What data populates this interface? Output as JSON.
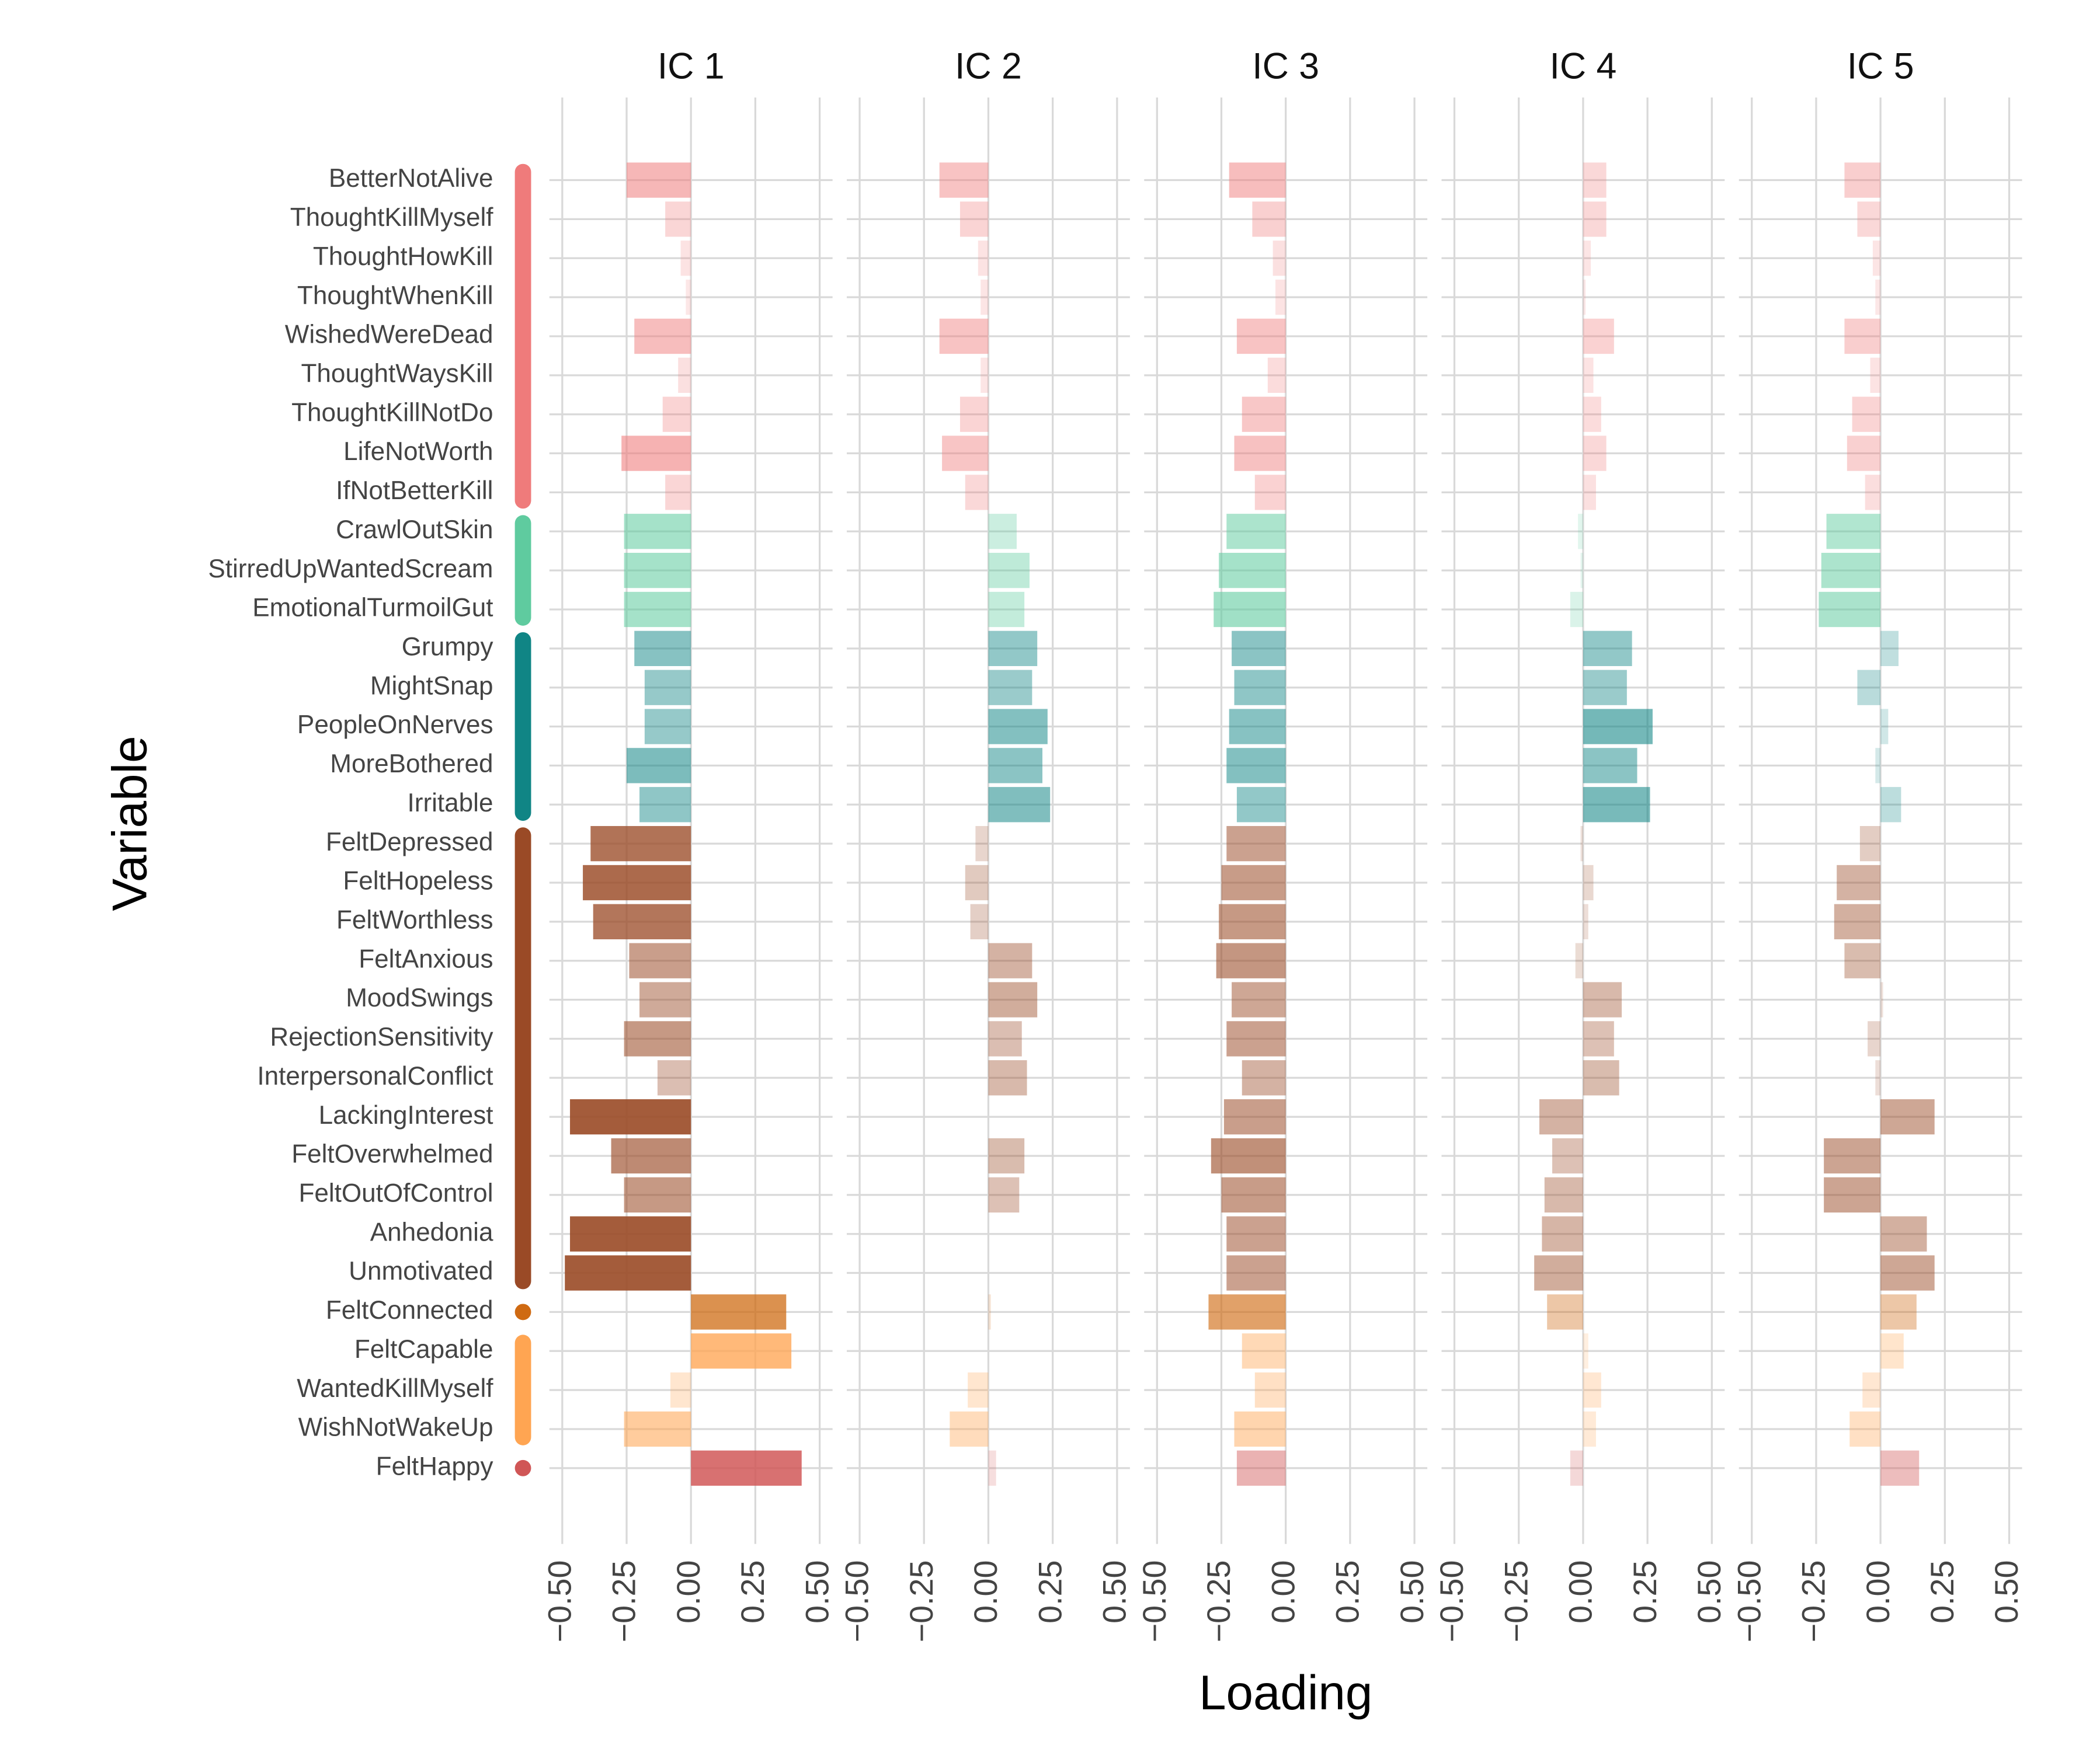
{
  "chart_data": {
    "type": "bar",
    "orientation": "horizontal",
    "xlabel": "Loading",
    "ylabel": "Variable",
    "categories": [
      "BetterNotAlive",
      "ThoughtKillMyself",
      "ThoughtHowKill",
      "ThoughtWhenKill",
      "WishedWereDead",
      "ThoughtWaysKill",
      "ThoughtKillNotDo",
      "LifeNotWorth",
      "IfNotBetterKill",
      "CrawlOutSkin",
      "StirredUpWantedScream",
      "EmotionalTurmoilGut",
      "Grumpy",
      "MightSnap",
      "PeopleOnNerves",
      "MoreBothered",
      "Irritable",
      "FeltDepressed",
      "FeltHopeless",
      "FeltWorthless",
      "FeltAnxious",
      "MoodSwings",
      "RejectionSensitivity",
      "InterpersonalConflict",
      "LackingInterest",
      "FeltOverwhelmed",
      "FeltOutOfControl",
      "Anhedonia",
      "Unmotivated",
      "FeltConnected",
      "FeltCapable",
      "WantedKillMyself",
      "WishNotWakeUp",
      "FeltHappy"
    ],
    "category_colors": [
      "#ef7b7b",
      "#ef7b7b",
      "#ef7b7b",
      "#ef7b7b",
      "#ef7b7b",
      "#ef7b7b",
      "#ef7b7b",
      "#ef7b7b",
      "#ef7b7b",
      "#5fcb9f",
      "#5fcb9f",
      "#5fcb9f",
      "#108585",
      "#108585",
      "#108585",
      "#108585",
      "#108585",
      "#9a4a26",
      "#9a4a26",
      "#9a4a26",
      "#9a4a26",
      "#9a4a26",
      "#9a4a26",
      "#9a4a26",
      "#9a4a26",
      "#9a4a26",
      "#9a4a26",
      "#9a4a26",
      "#9a4a26",
      "#cf6a12",
      "#ffa552",
      "#ffa552",
      "#ffa552",
      "#d05656"
    ],
    "series": [
      {
        "name": "IC 1",
        "values": [
          -0.25,
          -0.1,
          -0.04,
          -0.02,
          -0.22,
          -0.05,
          -0.11,
          -0.27,
          -0.1,
          -0.26,
          -0.26,
          -0.26,
          -0.22,
          -0.18,
          -0.18,
          -0.25,
          -0.2,
          -0.39,
          -0.42,
          -0.38,
          -0.24,
          -0.2,
          -0.26,
          -0.13,
          -0.47,
          -0.31,
          -0.26,
          -0.47,
          -0.49,
          0.37,
          0.39,
          -0.08,
          -0.26,
          0.43
        ]
      },
      {
        "name": "IC 2",
        "values": [
          -0.19,
          -0.11,
          -0.04,
          -0.03,
          -0.19,
          -0.03,
          -0.11,
          -0.18,
          -0.09,
          0.11,
          0.16,
          0.14,
          0.19,
          0.17,
          0.23,
          0.21,
          0.24,
          -0.05,
          -0.09,
          -0.07,
          0.17,
          0.19,
          0.13,
          0.15,
          0.0,
          0.14,
          0.12,
          0.0,
          0.0,
          0.01,
          0.0,
          -0.08,
          -0.15,
          0.03
        ]
      },
      {
        "name": "IC 3",
        "values": [
          -0.22,
          -0.13,
          -0.05,
          -0.04,
          -0.19,
          -0.07,
          -0.17,
          -0.2,
          -0.12,
          -0.23,
          -0.26,
          -0.28,
          -0.21,
          -0.2,
          -0.22,
          -0.23,
          -0.19,
          -0.23,
          -0.25,
          -0.26,
          -0.27,
          -0.21,
          -0.23,
          -0.17,
          -0.24,
          -0.29,
          -0.25,
          -0.23,
          -0.23,
          -0.3,
          -0.17,
          -0.12,
          -0.2,
          -0.19
        ]
      },
      {
        "name": "IC 4",
        "values": [
          0.09,
          0.09,
          0.03,
          0.01,
          0.12,
          0.04,
          0.07,
          0.09,
          0.05,
          -0.02,
          -0.01,
          -0.05,
          0.19,
          0.17,
          0.27,
          0.21,
          0.26,
          -0.01,
          0.04,
          0.02,
          -0.03,
          0.15,
          0.12,
          0.14,
          -0.17,
          -0.12,
          -0.15,
          -0.16,
          -0.19,
          -0.14,
          0.02,
          0.07,
          0.05,
          -0.05
        ]
      },
      {
        "name": "IC 5",
        "values": [
          -0.14,
          -0.09,
          -0.03,
          -0.02,
          -0.14,
          -0.04,
          -0.11,
          -0.13,
          -0.06,
          -0.21,
          -0.23,
          -0.24,
          0.07,
          -0.09,
          0.03,
          -0.02,
          0.08,
          -0.08,
          -0.17,
          -0.18,
          -0.14,
          0.01,
          -0.05,
          -0.02,
          0.21,
          -0.22,
          -0.22,
          0.18,
          0.21,
          0.14,
          0.09,
          -0.07,
          -0.12,
          0.15
        ]
      }
    ],
    "xlim": [
      -0.55,
      0.55
    ],
    "xticks": [
      {
        "value": -0.5,
        "label": "−0.50"
      },
      {
        "value": -0.25,
        "label": "−0.25"
      },
      {
        "value": 0,
        "label": "0.00"
      },
      0.25,
      {
        "value": 0.5,
        "label": "0.50"
      }
    ],
    "grid": true
  }
}
